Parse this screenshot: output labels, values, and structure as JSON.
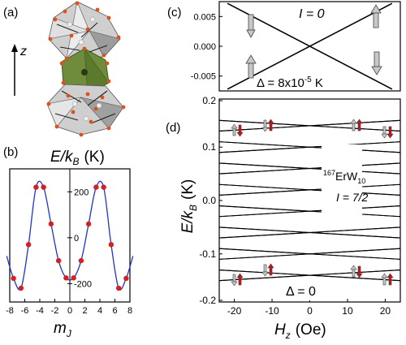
{
  "panels": {
    "a": {
      "label": "(a)",
      "axis_label": "z"
    },
    "b": {
      "label": "(b)"
    },
    "c": {
      "label": "(c)"
    },
    "d": {
      "label": "(d)"
    }
  },
  "colors": {
    "curve_blue": "#2233cc",
    "point_red": "#d42020",
    "arrow_grey": "#c8c8c8",
    "arrow_red": "#cc1010",
    "crystal_green": "#6f8c3c",
    "crystal_grey": "#bcbcbc",
    "atom_orange": "#e0501a"
  },
  "chart_data": [
    {
      "panel": "b",
      "type": "line",
      "ylabel_main": "E/k",
      "ylabel_sub": "B",
      "ylabel_unit": "(K)",
      "xlabel_main": "m",
      "xlabel_sub": "J",
      "xlim": [
        -8,
        8
      ],
      "ylim": [
        -280,
        300
      ],
      "x_ticks": [
        "-8",
        "-6",
        "-4",
        "-2",
        "0",
        "2",
        "4",
        "6",
        "8"
      ],
      "y_ticks": [
        "-200",
        "0",
        "200"
      ],
      "points": {
        "x": [
          -7.5,
          -6.5,
          -5.5,
          -4.5,
          -3.5,
          -2.5,
          -1.5,
          -0.5,
          0.5,
          1.5,
          2.5,
          3.5,
          4.5,
          5.5,
          6.5,
          7.5
        ],
        "y": [
          -177,
          -220,
          -30,
          220,
          220,
          60,
          -100,
          -175,
          -175,
          -100,
          60,
          220,
          220,
          -30,
          -220,
          -177
        ]
      }
    },
    {
      "panel": "c",
      "type": "line",
      "annotation_I": "I = 0",
      "annotation_delta": "Δ = 8x10",
      "annotation_delta_exp": "-5",
      "annotation_delta_unit": " K",
      "xlim": [
        -22,
        22
      ],
      "ylim": [
        -0.0075,
        0.0075
      ],
      "y_ticks": [
        "0.005",
        "0.000",
        "-0.005"
      ],
      "lines": [
        {
          "x": [
            -20,
            20
          ],
          "y": [
            0.0072,
            -0.0072
          ]
        },
        {
          "x": [
            -20,
            20
          ],
          "y": [
            -0.0072,
            0.0072
          ]
        }
      ]
    },
    {
      "panel": "d",
      "type": "line",
      "ylabel_main": "E/k",
      "ylabel_sub": "B",
      "ylabel_unit": "(K)",
      "xlabel_main": "H",
      "xlabel_sub": "z",
      "xlabel_unit": "(Oe)",
      "xlim": [
        -24,
        24
      ],
      "ylim": [
        -0.19,
        0.19
      ],
      "x_ticks": [
        "-20",
        "-10",
        "0",
        "10",
        "20"
      ],
      "y_ticks": [
        "0.2",
        "0.1",
        "0.0",
        "-0.1",
        "-0.2"
      ],
      "compound_sup": "167",
      "compound_name": "ErW",
      "compound_sub": "10",
      "spin_label": "I = 7/2",
      "delta_label": "Δ = 0",
      "line_endpoints": {
        "x": [
          -24,
          24
        ],
        "levels": [
          0.15,
          0.13,
          0.11,
          0.09,
          0.07,
          0.05,
          0.03,
          0.01,
          -0.01,
          -0.03,
          -0.05,
          -0.07,
          -0.09,
          -0.11,
          -0.13,
          -0.15
        ],
        "slope_per_oe": 0.00083
      }
    }
  ]
}
